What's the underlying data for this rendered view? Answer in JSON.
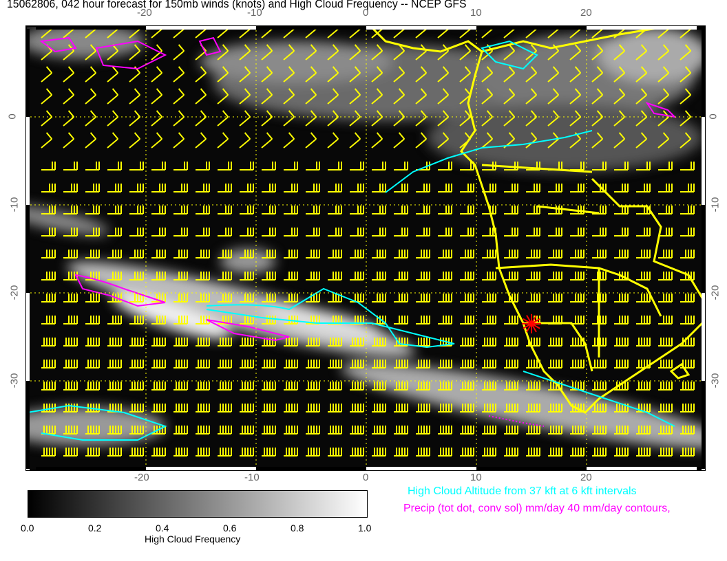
{
  "title": "15062806, 042 hour forecast for 150mb winds (knots) and High Cloud Frequency -- NCEP GFS",
  "map": {
    "lon_range": [
      -31,
      31
    ],
    "lat_range": [
      -40,
      10
    ],
    "lon_ticks": [
      "-20",
      "-10",
      "0",
      "10",
      "20"
    ],
    "lat_ticks": [
      "0",
      "-10",
      "-20",
      "-30"
    ],
    "colors": {
      "winds": "#ffff00",
      "coastlines": "#ffff00",
      "cloud_altitude": "#00ffff",
      "precip": "#ff00ff",
      "marker": "#ff0000"
    },
    "cloud_altitude_label": "37",
    "marker_location": {
      "lon": 15,
      "lat": -23.5
    }
  },
  "colorbar": {
    "title": "High Cloud Frequency",
    "ticks": [
      "0.0",
      "0.2",
      "0.4",
      "0.6",
      "0.8",
      "1.0"
    ],
    "range": [
      0,
      1
    ]
  },
  "legend": {
    "cloud_altitude": "High Cloud Altitude from 37 kft at 6 kft intervals",
    "precip": "Precip (tot dot, conv sol) mm/day 40 mm/day contours,"
  }
}
